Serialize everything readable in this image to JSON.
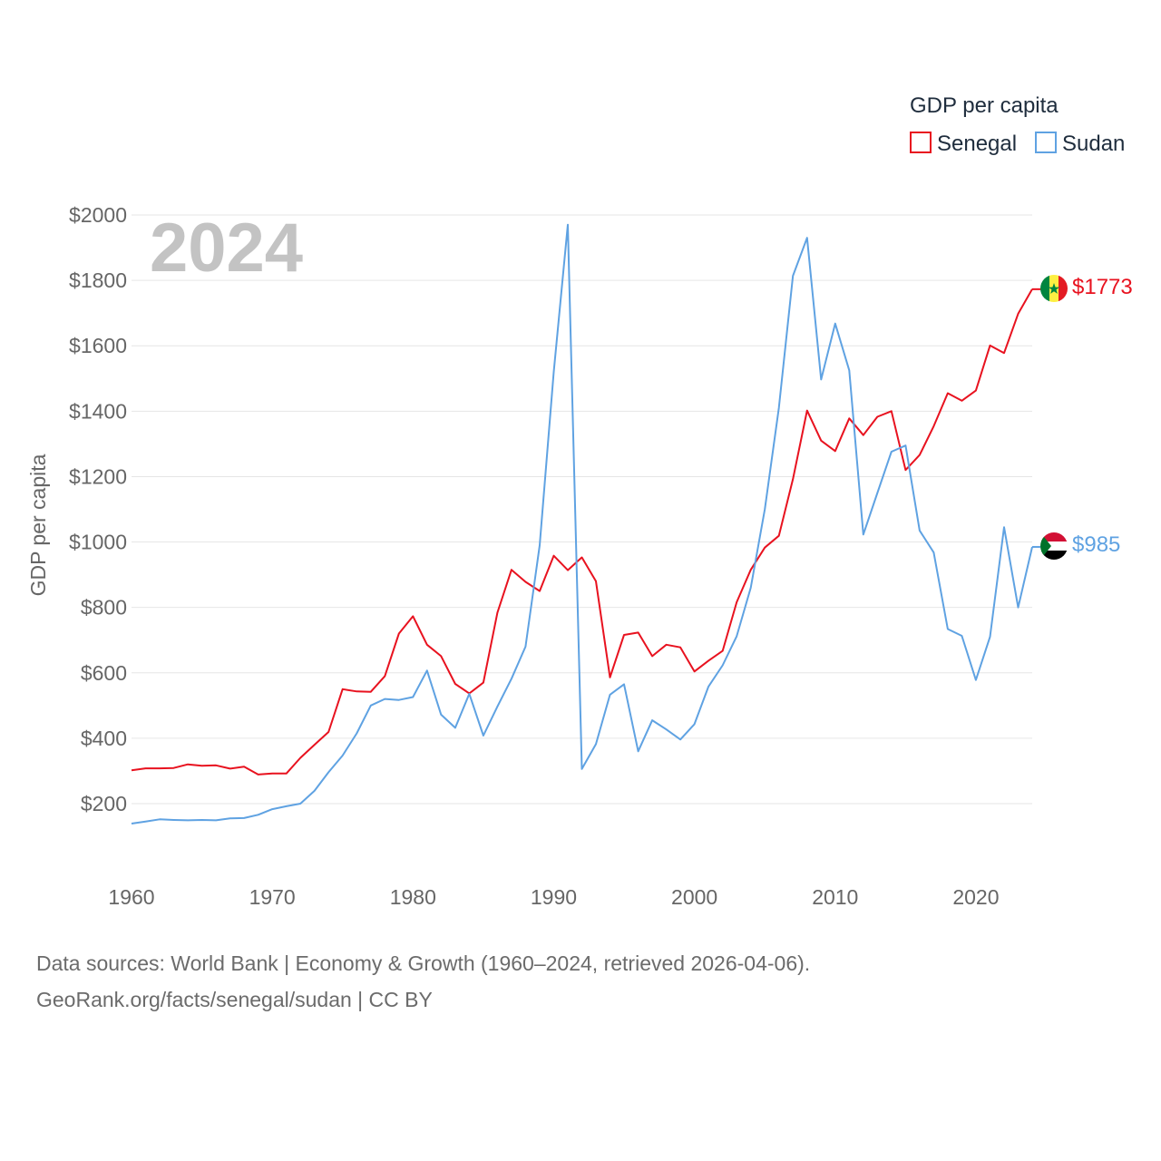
{
  "chart_data": {
    "type": "line",
    "title": "GDP per capita",
    "ylabel": "GDP per capita",
    "xlabel": "",
    "year_display": "2024",
    "ylim": [
      0,
      2000
    ],
    "xlim": [
      1960,
      2024
    ],
    "y_ticks": [
      200,
      400,
      600,
      800,
      1000,
      1200,
      1400,
      1600,
      1800,
      2000
    ],
    "y_tick_labels": [
      "$200",
      "$400",
      "$600",
      "$800",
      "$1000",
      "$1200",
      "$1400",
      "$1600",
      "$1800",
      "$2000"
    ],
    "x_ticks": [
      1960,
      1970,
      1980,
      1990,
      2000,
      2010,
      2020
    ],
    "x_tick_labels": [
      "1960",
      "1970",
      "1980",
      "1990",
      "2000",
      "2010",
      "2020"
    ],
    "grid": true,
    "legend_position": "top-right",
    "legend_title": "GDP per capita",
    "x": [
      1960,
      1961,
      1962,
      1963,
      1964,
      1965,
      1966,
      1967,
      1968,
      1969,
      1970,
      1971,
      1972,
      1973,
      1974,
      1975,
      1976,
      1977,
      1978,
      1979,
      1980,
      1981,
      1982,
      1983,
      1984,
      1985,
      1986,
      1987,
      1988,
      1989,
      1990,
      1991,
      1992,
      1993,
      1994,
      1995,
      1996,
      1997,
      1998,
      1999,
      2000,
      2001,
      2002,
      2003,
      2004,
      2005,
      2006,
      2007,
      2008,
      2009,
      2010,
      2011,
      2012,
      2013,
      2014,
      2015,
      2016,
      2017,
      2018,
      2019,
      2020,
      2021,
      2022,
      2023,
      2024
    ],
    "series": [
      {
        "name": "Senegal",
        "color": "#e8121f",
        "end_label": "$1773",
        "flag": "senegal-flag",
        "values": [
          302,
          308,
          308,
          309,
          320,
          316,
          317,
          307,
          313,
          289,
          292,
          292,
          340,
          380,
          419,
          550,
          543,
          542,
          590,
          720,
          773,
          686,
          651,
          566,
          537,
          570,
          784,
          915,
          878,
          850,
          958,
          914,
          953,
          880,
          586,
          716,
          723,
          651,
          686,
          678,
          604,
          637,
          667,
          816,
          915,
          983,
          1019,
          1192,
          1402,
          1310,
          1278,
          1378,
          1327,
          1383,
          1400,
          1220,
          1266,
          1354,
          1455,
          1432,
          1463,
          1601,
          1578,
          1698,
          1773
        ]
      },
      {
        "name": "Sudan",
        "color": "#5fa2e2",
        "end_label": "$985",
        "flag": "sudan-flag",
        "values": [
          139,
          145,
          152,
          150,
          149,
          150,
          149,
          155,
          156,
          166,
          183,
          192,
          200,
          239,
          296,
          347,
          415,
          500,
          520,
          517,
          526,
          607,
          472,
          432,
          536,
          408,
          497,
          582,
          680,
          990,
          1520,
          1970,
          306,
          382,
          533,
          565,
          360,
          455,
          427,
          396,
          443,
          558,
          623,
          712,
          860,
          1100,
          1410,
          1814,
          1930,
          1497,
          1668,
          1525,
          1023,
          1150,
          1276,
          1295,
          1035,
          968,
          734,
          713,
          578,
          710,
          1045,
          800,
          985
        ]
      }
    ]
  },
  "footer": {
    "line1": "Data sources: World Bank | Economy & Growth (1960–2024, retrieved 2026-04-06).",
    "line2": "GeoRank.org/facts/senegal/sudan | CC BY"
  }
}
